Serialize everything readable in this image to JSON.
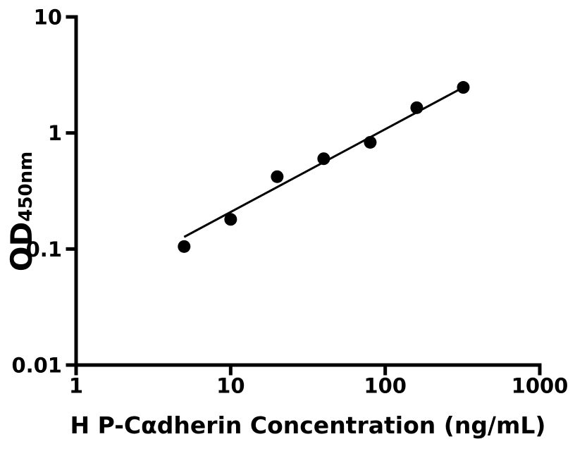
{
  "figure": {
    "background_color": "#ffffff",
    "ink_color": "#000000"
  },
  "chart_data": {
    "type": "scatter",
    "title": "",
    "xlabel": "H P-Cαdherin Concentration (ng/mL)",
    "ylabel_main": "OD",
    "ylabel_sub": "450nm",
    "x_scale": "log",
    "y_scale": "log",
    "xlim": [
      1,
      1000
    ],
    "ylim": [
      0.01,
      10
    ],
    "grid": false,
    "legend": false,
    "axis_color": "#000000",
    "x_ticks": [
      {
        "value": 1,
        "label": "1"
      },
      {
        "value": 10,
        "label": "10"
      },
      {
        "value": 100,
        "label": "100"
      },
      {
        "value": 1000,
        "label": "1000"
      }
    ],
    "y_ticks": [
      {
        "value": 10,
        "label": "10"
      },
      {
        "value": 1,
        "label": "1"
      },
      {
        "value": 0.1,
        "label": "0.1"
      },
      {
        "value": 0.01,
        "label": "0.01"
      }
    ],
    "series": [
      {
        "name": "fit-line",
        "type": "line",
        "color": "#000000",
        "points": [
          {
            "x": 5,
            "y": 0.127
          },
          {
            "x": 320,
            "y": 2.47
          }
        ]
      },
      {
        "name": "standard-points",
        "type": "scatter",
        "marker": "circle",
        "color": "#000000",
        "points": [
          {
            "x": 5,
            "y": 0.105
          },
          {
            "x": 10,
            "y": 0.18
          },
          {
            "x": 20,
            "y": 0.42
          },
          {
            "x": 40,
            "y": 0.6
          },
          {
            "x": 80,
            "y": 0.83
          },
          {
            "x": 160,
            "y": 1.65
          },
          {
            "x": 320,
            "y": 2.47
          }
        ]
      }
    ]
  }
}
